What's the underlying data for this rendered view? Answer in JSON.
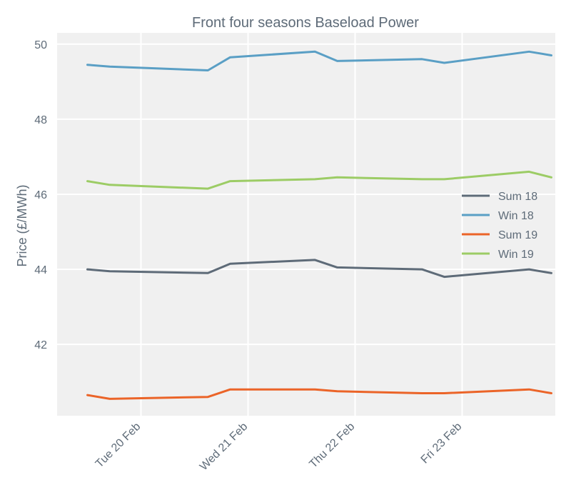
{
  "chart_data": {
    "type": "line",
    "title": "Front four seasons Baseload Power",
    "xlabel": "",
    "ylabel": "Price (£/MWh)",
    "ylim": [
      40.1,
      50.3
    ],
    "yticks": [
      42,
      44,
      46,
      48,
      50
    ],
    "x": [
      "2018-02-19T12:00",
      "2018-02-19T17:00",
      "2018-02-20T15:00",
      "2018-02-20T20:00",
      "2018-02-21T15:00",
      "2018-02-21T20:00",
      "2018-02-22T15:00",
      "2018-02-22T20:00",
      "2018-02-23T15:00",
      "2018-02-23T20:00"
    ],
    "xticks": [
      {
        "date": "2018-02-20",
        "label": "Tue 20 Feb"
      },
      {
        "date": "2018-02-21",
        "label": "Wed 21 Feb"
      },
      {
        "date": "2018-02-22",
        "label": "Thu 22 Feb"
      },
      {
        "date": "2018-02-23",
        "label": "Fri 23 Feb"
      }
    ],
    "grid": true,
    "legend_position": "right",
    "series": [
      {
        "name": "Sum 18",
        "color": "#5e6b78",
        "values": [
          44.0,
          43.95,
          43.9,
          44.15,
          44.25,
          44.05,
          44.0,
          43.8,
          44.0,
          43.9
        ]
      },
      {
        "name": "Win 18",
        "color": "#5a9fc5",
        "values": [
          49.45,
          49.4,
          49.3,
          49.65,
          49.8,
          49.55,
          49.6,
          49.5,
          49.8,
          49.7
        ]
      },
      {
        "name": "Sum 19",
        "color": "#eb6428",
        "values": [
          40.65,
          40.55,
          40.6,
          40.8,
          40.8,
          40.75,
          40.7,
          40.7,
          40.8,
          40.7
        ]
      },
      {
        "name": "Win 19",
        "color": "#9ccc65",
        "values": [
          46.35,
          46.25,
          46.15,
          46.35,
          46.4,
          46.45,
          46.4,
          46.4,
          46.6,
          46.45
        ]
      }
    ]
  }
}
